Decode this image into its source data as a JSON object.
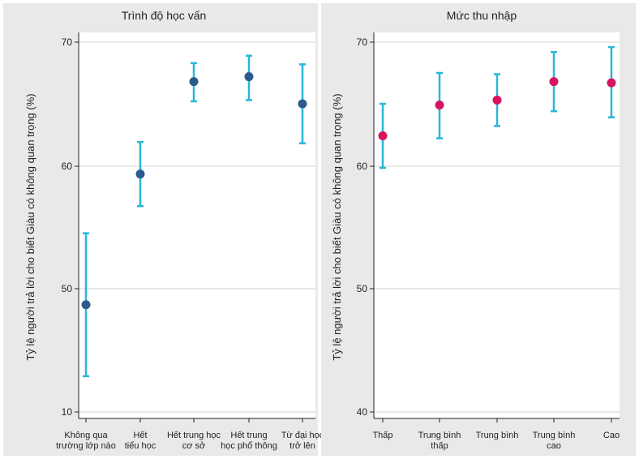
{
  "chart_data": [
    {
      "type": "scatter",
      "subtype": "point-with-error-bars",
      "title": "Trình độ học vấn",
      "ylabel": "Tỷ lệ người trả lời cho biết Giàu có không quan trọng (%)",
      "y_tick_labels": [
        "10",
        "50",
        "60",
        "70"
      ],
      "y_ticks_note": "axis is broken: bottom tick printed as 10, then 50, 60, 70 evenly spaced",
      "grid": true,
      "categories": [
        [
          "Không qua",
          "trường lớp nào"
        ],
        [
          "Hết",
          "tiểu học"
        ],
        [
          "Hết trung học",
          "cơ sở"
        ],
        [
          "Hết trung",
          "học phổ thông"
        ],
        [
          "Từ đại học",
          "trở lên"
        ]
      ],
      "values": [
        48.7,
        59.3,
        66.8,
        67.2,
        65.0
      ],
      "ci_low": [
        42.9,
        56.7,
        65.2,
        65.3,
        61.8
      ],
      "ci_high": [
        54.5,
        61.9,
        68.3,
        68.9,
        68.2
      ],
      "point_color": "#2b5a8c",
      "bar_color": "#29b6d8"
    },
    {
      "type": "scatter",
      "subtype": "point-with-error-bars",
      "title": "Mức thu nhập",
      "ylabel": "Tỷ lệ người trả lời cho biết Giàu có không quan trọng (%)",
      "y_tick_labels": [
        "40",
        "50",
        "60",
        "70"
      ],
      "ylim": [
        40,
        70
      ],
      "grid": true,
      "categories": [
        [
          "Thấp"
        ],
        [
          "Trung bình",
          "thấp"
        ],
        [
          "Trung bình"
        ],
        [
          "Trung bình",
          "cao"
        ],
        [
          "Cao"
        ]
      ],
      "values": [
        62.4,
        64.9,
        65.3,
        66.8,
        66.7
      ],
      "ci_low": [
        59.8,
        62.2,
        63.2,
        64.4,
        63.9
      ],
      "ci_high": [
        65.0,
        67.5,
        67.4,
        69.2,
        69.6
      ],
      "point_color": "#d6145f",
      "bar_color": "#29b6d8"
    }
  ],
  "colors": {
    "panel_background": "#e9e9ea",
    "plot_background": "#ffffff",
    "grid": "#d4d4d4",
    "text": "#231f20"
  }
}
